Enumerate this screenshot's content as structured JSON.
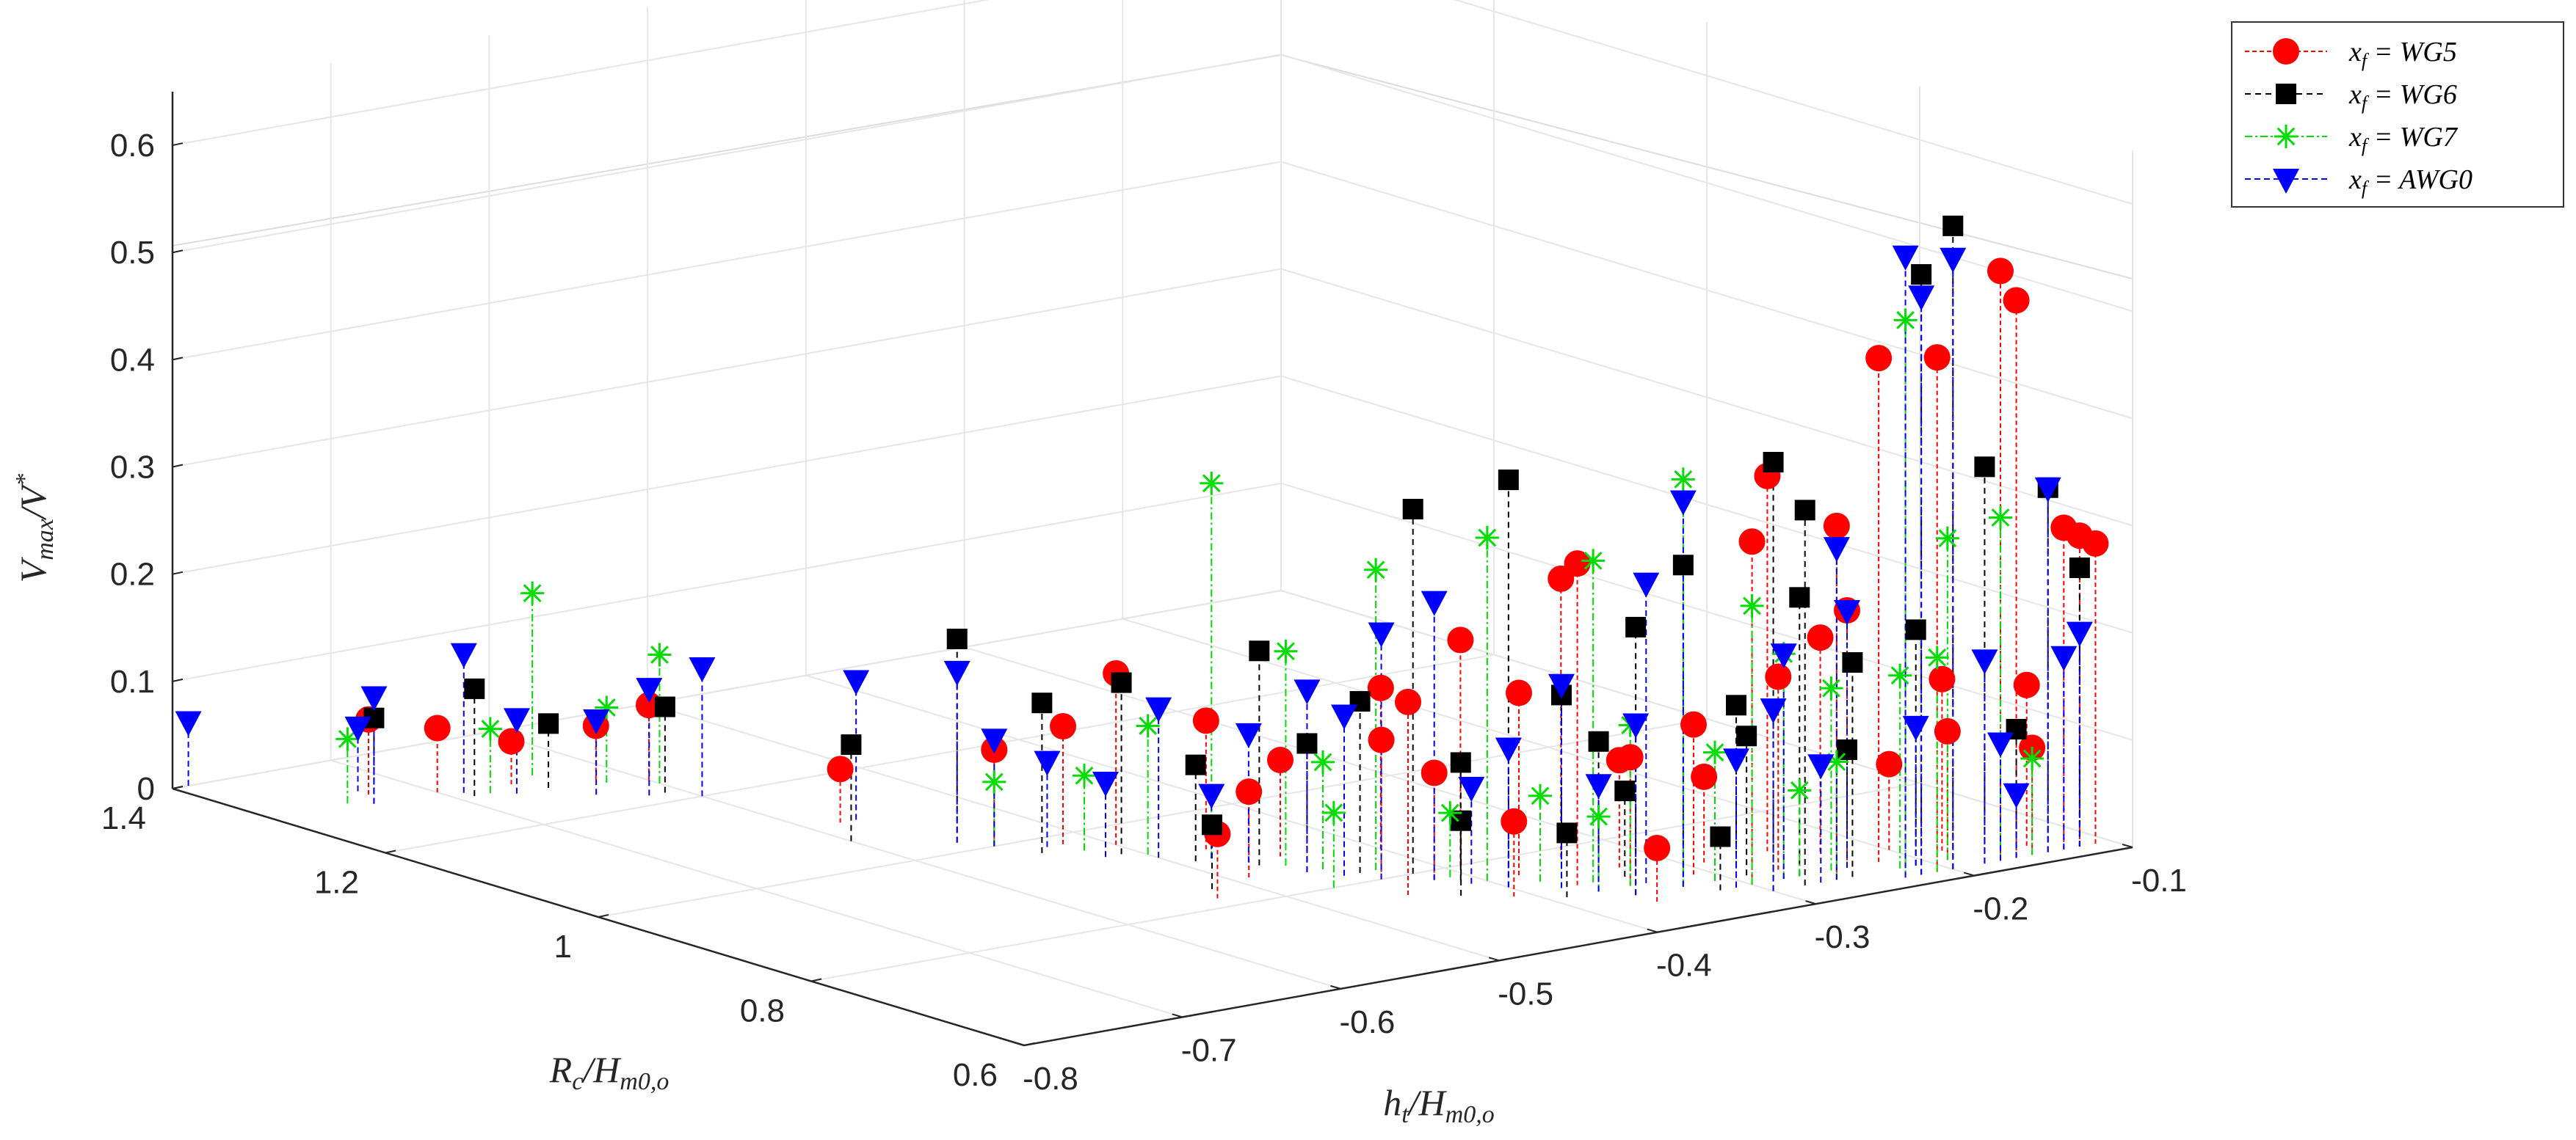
{
  "chart_data": {
    "type": "scatter3d-stem",
    "title": "",
    "xlabel": "h_t/H_{m0,o}",
    "ylabel": "R_c/H_{m0,o}",
    "zlabel": "V_{max}/V^*",
    "xlim": [
      -0.8,
      -0.1
    ],
    "ylim": [
      0.6,
      1.4
    ],
    "zlim": [
      0,
      0.65
    ],
    "x_ticks": [
      "-0.8",
      "-0.7",
      "-0.6",
      "-0.5",
      "-0.4",
      "-0.3",
      "-0.2",
      "-0.1"
    ],
    "y_ticks": [
      "0.6",
      "0.8",
      "1",
      "1.2",
      "1.4"
    ],
    "z_ticks": [
      "0",
      "0.1",
      "0.2",
      "0.3",
      "0.4",
      "0.5",
      "0.6"
    ],
    "grid": true,
    "legend_position": "top-right",
    "series": [
      {
        "name": "x_f = WG5",
        "color": "#ff0000",
        "marker": "circle",
        "points": [
          [
            -0.73,
            1.32,
            0.07
          ],
          [
            -0.7,
            1.3,
            0.06
          ],
          [
            -0.66,
            1.29,
            0.04
          ],
          [
            -0.62,
            1.27,
            0.05
          ],
          [
            -0.6,
            1.25,
            0.07
          ],
          [
            -0.58,
            1.1,
            0.05
          ],
          [
            -0.55,
            1.0,
            0.09
          ],
          [
            -0.52,
            0.98,
            0.11
          ],
          [
            -0.5,
            0.96,
            0.16
          ],
          [
            -0.53,
            0.82,
            0.06
          ],
          [
            -0.49,
            0.85,
            0.08
          ],
          [
            -0.47,
            0.92,
            0.12
          ],
          [
            -0.45,
            0.88,
            0.09
          ],
          [
            -0.44,
            0.8,
            0.13
          ],
          [
            -0.42,
            0.78,
            0.1
          ],
          [
            -0.4,
            0.86,
            0.15
          ],
          [
            -0.39,
            0.8,
            0.21
          ],
          [
            -0.38,
            0.76,
            0.17
          ],
          [
            -0.37,
            0.72,
            0.3
          ],
          [
            -0.35,
            0.7,
            0.12
          ],
          [
            -0.34,
            0.78,
            0.26
          ],
          [
            -0.33,
            0.74,
            0.1
          ],
          [
            -0.31,
            0.7,
            0.14
          ],
          [
            -0.3,
            0.66,
            0.32
          ],
          [
            -0.29,
            0.72,
            0.08
          ],
          [
            -0.27,
            0.68,
            0.18
          ],
          [
            -0.26,
            0.64,
            0.33
          ],
          [
            -0.25,
            0.72,
            0.35
          ],
          [
            -0.24,
            0.66,
            0.24
          ],
          [
            -0.23,
            0.7,
            0.2
          ],
          [
            -0.22,
            0.66,
            0.47
          ],
          [
            -0.21,
            0.62,
            0.48
          ],
          [
            -0.2,
            0.68,
            0.08
          ],
          [
            -0.19,
            0.64,
            0.12
          ],
          [
            -0.18,
            0.66,
            0.16
          ],
          [
            -0.17,
            0.62,
            0.55
          ],
          [
            -0.16,
            0.62,
            0.52
          ],
          [
            -0.15,
            0.62,
            0.1
          ],
          [
            -0.14,
            0.64,
            0.15
          ],
          [
            -0.13,
            0.62,
            0.3
          ],
          [
            -0.12,
            0.62,
            0.29
          ],
          [
            -0.11,
            0.62,
            0.28
          ],
          [
            -0.45,
            0.76,
            0.18
          ],
          [
            -0.41,
            0.72,
            0.07
          ],
          [
            -0.36,
            0.66,
            0.05
          ]
        ]
      },
      {
        "name": "x_f = WG6",
        "color": "#000000",
        "marker": "square",
        "points": [
          [
            -0.74,
            1.3,
            0.08
          ],
          [
            -0.69,
            1.28,
            0.1
          ],
          [
            -0.65,
            1.27,
            0.06
          ],
          [
            -0.61,
            1.22,
            0.08
          ],
          [
            -0.6,
            1.06,
            0.09
          ],
          [
            -0.56,
            1.02,
            0.19
          ],
          [
            -0.54,
            0.97,
            0.14
          ],
          [
            -0.51,
            0.94,
            0.16
          ],
          [
            -0.49,
            0.9,
            0.09
          ],
          [
            -0.47,
            0.87,
            0.2
          ],
          [
            -0.46,
            0.84,
            0.12
          ],
          [
            -0.44,
            0.82,
            0.16
          ],
          [
            -0.42,
            0.8,
            0.34
          ],
          [
            -0.41,
            0.77,
            0.11
          ],
          [
            -0.4,
            0.74,
            0.38
          ],
          [
            -0.38,
            0.72,
            0.18
          ],
          [
            -0.37,
            0.7,
            0.14
          ],
          [
            -0.36,
            0.68,
            0.25
          ],
          [
            -0.34,
            0.72,
            0.08
          ],
          [
            -0.33,
            0.68,
            0.3
          ],
          [
            -0.31,
            0.66,
            0.17
          ],
          [
            -0.3,
            0.64,
            0.4
          ],
          [
            -0.29,
            0.68,
            0.13
          ],
          [
            -0.28,
            0.64,
            0.35
          ],
          [
            -0.27,
            0.66,
            0.26
          ],
          [
            -0.25,
            0.64,
            0.2
          ],
          [
            -0.24,
            0.66,
            0.11
          ],
          [
            -0.22,
            0.62,
            0.56
          ],
          [
            -0.21,
            0.64,
            0.22
          ],
          [
            -0.2,
            0.62,
            0.6
          ],
          [
            -0.18,
            0.62,
            0.37
          ],
          [
            -0.16,
            0.62,
            0.12
          ],
          [
            -0.14,
            0.62,
            0.34
          ],
          [
            -0.12,
            0.62,
            0.26
          ],
          [
            -0.52,
            0.84,
            0.06
          ],
          [
            -0.43,
            0.74,
            0.07
          ],
          [
            -0.39,
            0.7,
            0.06
          ],
          [
            -0.32,
            0.66,
            0.05
          ]
        ]
      },
      {
        "name": "x_f = WG7",
        "color": "#00dd00",
        "marker": "asterisk",
        "points": [
          [
            -0.75,
            1.31,
            0.06
          ],
          [
            -0.68,
            1.28,
            0.06
          ],
          [
            -0.64,
            1.3,
            0.17
          ],
          [
            -0.62,
            1.26,
            0.07
          ],
          [
            -0.6,
            1.24,
            0.12
          ],
          [
            -0.55,
            1.0,
            0.06
          ],
          [
            -0.52,
            0.96,
            0.07
          ],
          [
            -0.5,
            0.93,
            0.12
          ],
          [
            -0.48,
            0.9,
            0.35
          ],
          [
            -0.46,
            0.86,
            0.2
          ],
          [
            -0.45,
            0.84,
            0.1
          ],
          [
            -0.43,
            0.82,
            0.28
          ],
          [
            -0.41,
            0.78,
            0.06
          ],
          [
            -0.4,
            0.76,
            0.32
          ],
          [
            -0.38,
            0.74,
            0.08
          ],
          [
            -0.36,
            0.72,
            0.3
          ],
          [
            -0.35,
            0.7,
            0.15
          ],
          [
            -0.33,
            0.68,
            0.38
          ],
          [
            -0.31,
            0.68,
            0.12
          ],
          [
            -0.3,
            0.66,
            0.26
          ],
          [
            -0.28,
            0.66,
            0.21
          ],
          [
            -0.26,
            0.64,
            0.11
          ],
          [
            -0.25,
            0.66,
            0.17
          ],
          [
            -0.23,
            0.62,
            0.52
          ],
          [
            -0.22,
            0.64,
            0.18
          ],
          [
            -0.21,
            0.62,
            0.2
          ],
          [
            -0.19,
            0.64,
            0.3
          ],
          [
            -0.17,
            0.62,
            0.32
          ],
          [
            -0.15,
            0.62,
            0.09
          ],
          [
            -0.47,
            0.8,
            0.07
          ],
          [
            -0.37,
            0.7,
            0.07
          ],
          [
            -0.27,
            0.66,
            0.08
          ]
        ]
      },
      {
        "name": "x_f = AWG0",
        "color": "#0000ff",
        "marker": "triangle-down",
        "points": [
          [
            -0.79,
            1.4,
            0.06
          ],
          [
            -0.74,
            1.3,
            0.1
          ],
          [
            -0.73,
            1.33,
            0.06
          ],
          [
            -0.69,
            1.29,
            0.13
          ],
          [
            -0.67,
            1.27,
            0.07
          ],
          [
            -0.64,
            1.24,
            0.07
          ],
          [
            -0.62,
            1.22,
            0.1
          ],
          [
            -0.6,
            1.2,
            0.12
          ],
          [
            -0.57,
            1.1,
            0.13
          ],
          [
            -0.56,
            1.02,
            0.16
          ],
          [
            -0.55,
            1.0,
            0.1
          ],
          [
            -0.53,
            0.98,
            0.08
          ],
          [
            -0.52,
            0.94,
            0.07
          ],
          [
            -0.5,
            0.92,
            0.14
          ],
          [
            -0.48,
            0.9,
            0.06
          ],
          [
            -0.47,
            0.88,
            0.12
          ],
          [
            -0.46,
            0.84,
            0.17
          ],
          [
            -0.45,
            0.82,
            0.15
          ],
          [
            -0.44,
            0.8,
            0.23
          ],
          [
            -0.42,
            0.78,
            0.26
          ],
          [
            -0.41,
            0.76,
            0.09
          ],
          [
            -0.4,
            0.74,
            0.13
          ],
          [
            -0.38,
            0.72,
            0.19
          ],
          [
            -0.37,
            0.7,
            0.1
          ],
          [
            -0.36,
            0.68,
            0.16
          ],
          [
            -0.34,
            0.7,
            0.28
          ],
          [
            -0.33,
            0.68,
            0.36
          ],
          [
            -0.31,
            0.66,
            0.12
          ],
          [
            -0.3,
            0.64,
            0.17
          ],
          [
            -0.28,
            0.66,
            0.21
          ],
          [
            -0.27,
            0.64,
            0.11
          ],
          [
            -0.26,
            0.64,
            0.31
          ],
          [
            -0.24,
            0.66,
            0.24
          ],
          [
            -0.23,
            0.62,
            0.58
          ],
          [
            -0.22,
            0.62,
            0.54
          ],
          [
            -0.21,
            0.64,
            0.13
          ],
          [
            -0.2,
            0.62,
            0.57
          ],
          [
            -0.18,
            0.62,
            0.19
          ],
          [
            -0.17,
            0.62,
            0.11
          ],
          [
            -0.16,
            0.62,
            0.06
          ],
          [
            -0.14,
            0.62,
            0.34
          ],
          [
            -0.13,
            0.62,
            0.18
          ],
          [
            -0.12,
            0.62,
            0.2
          ]
        ]
      }
    ]
  }
}
